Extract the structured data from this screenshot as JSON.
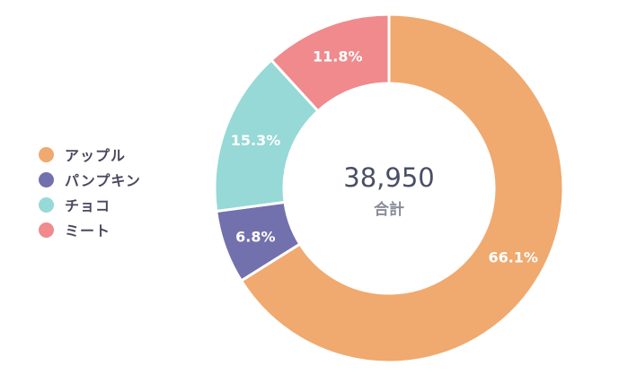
{
  "chart_data": {
    "type": "pie",
    "variant": "donut",
    "categories": [
      "アップル",
      "パンプキン",
      "チョコ",
      "ミート"
    ],
    "values": [
      66.1,
      6.8,
      15.3,
      11.8
    ],
    "value_labels": [
      "66.1%",
      "6.8%",
      "15.3%",
      "11.8%"
    ],
    "colors": [
      "#F0A96E",
      "#7370AE",
      "#96D9D6",
      "#F08A8C"
    ],
    "center_value": "38,950",
    "center_label": "合計",
    "legend_position": "left",
    "start_angle": "top, clockwise"
  }
}
